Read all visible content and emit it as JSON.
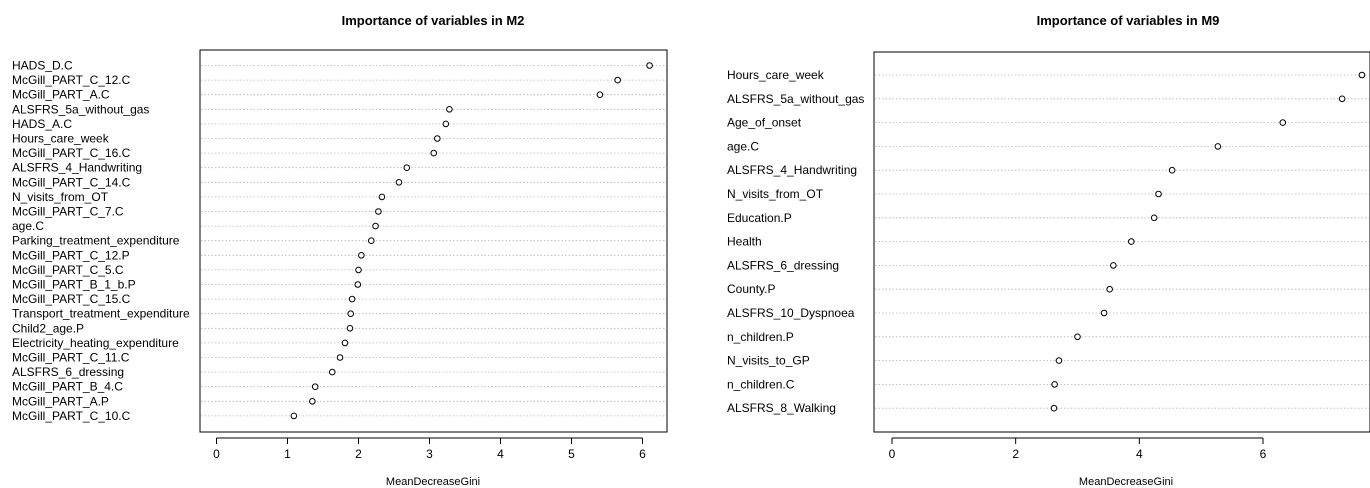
{
  "chart_data": [
    {
      "type": "scatter",
      "title": "Importance of variables in M2",
      "xlabel": "MeanDecreaseGini",
      "ylabel": "",
      "xlim": [
        0,
        6
      ],
      "xticks": [
        0,
        1,
        2,
        3,
        4,
        5,
        6
      ],
      "grid": "dotted horizontal lines per variable",
      "point_color": "#000000",
      "categories": [
        "HADS_D.C",
        "McGill_PART_C_12.C",
        "McGill_PART_A.C",
        "ALSFRS_5a_without_gas",
        "HADS_A.C",
        "Hours_care_week",
        "McGill_PART_C_16.C",
        "ALSFRS_4_Handwriting",
        "McGill_PART_C_14.C",
        "N_visits_from_OT",
        "McGill_PART_C_7.C",
        "age.C",
        "Parking_treatment_expenditure",
        "McGill_PART_C_12.P",
        "McGill_PART_C_5.C",
        "McGill_PART_B_1_b.P",
        "McGill_PART_C_15.C",
        "Transport_treatment_expenditure",
        "Child2_age.P",
        "Electricity_heating_expenditure",
        "McGill_PART_C_11.C",
        "ALSFRS_6_dressing",
        "McGill_PART_B_4.C",
        "McGill_PART_A.P",
        "McGill_PART_C_10.C"
      ],
      "values": [
        6.1,
        5.65,
        5.4,
        3.28,
        3.23,
        3.11,
        3.06,
        2.68,
        2.57,
        2.33,
        2.28,
        2.24,
        2.18,
        2.04,
        2.0,
        1.99,
        1.91,
        1.89,
        1.88,
        1.81,
        1.74,
        1.63,
        1.39,
        1.35,
        1.09
      ]
    },
    {
      "type": "scatter",
      "title": "Importance of variables in M9",
      "xlabel": "MeanDecreaseGini",
      "ylabel": "",
      "xlim": [
        0,
        7.6
      ],
      "xticks": [
        0,
        2,
        4,
        6
      ],
      "grid": "dotted horizontal lines per variable",
      "point_color": "#000000",
      "categories": [
        "Hours_care_week",
        "ALSFRS_5a_without_gas",
        "Age_of_onset",
        "age.C",
        "ALSFRS_4_Handwriting",
        "N_visits_from_OT",
        "Education.P",
        "Health",
        "ALSFRS_6_dressing",
        "County.P",
        "ALSFRS_10_Dyspnoea",
        "n_children.P",
        "N_visits_to_GP",
        "n_children.C",
        "ALSFRS_8_Walking"
      ],
      "values": [
        7.6,
        7.28,
        6.32,
        5.27,
        4.53,
        4.31,
        4.24,
        3.87,
        3.58,
        3.52,
        3.43,
        3.0,
        2.7,
        2.63,
        2.62
      ]
    }
  ]
}
